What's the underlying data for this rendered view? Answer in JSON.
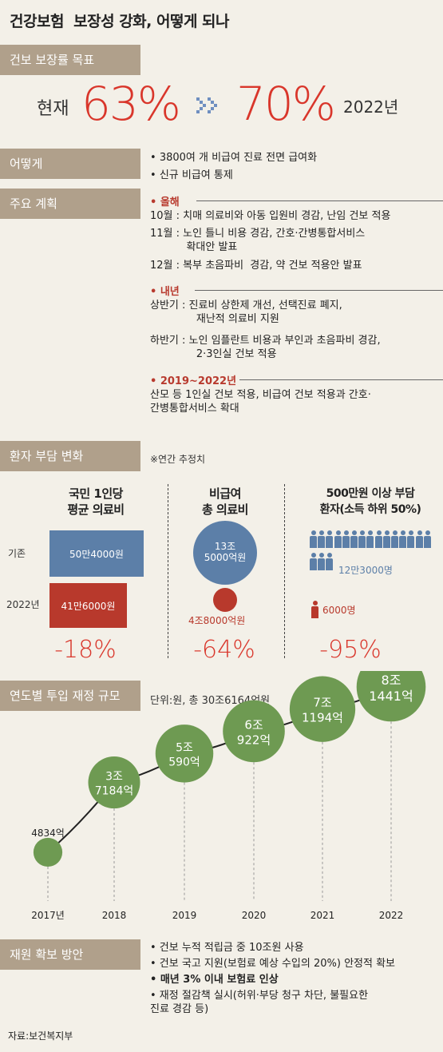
{
  "title": "건강보험  보장성 강화, 어떻게 되나",
  "coverage": {
    "section": "건보 보장률 목표",
    "now_label": "현재",
    "now_value": "63%",
    "target_value": "70%",
    "target_year": "2022년",
    "arrow_icon": "double-chevron-right-icon"
  },
  "how": {
    "section": "어떻게",
    "items": [
      "3800여 개 비급여 진료 전면 급여화",
      "신규 비급여 통제"
    ]
  },
  "plans": {
    "section": "주요 계획",
    "groups": [
      {
        "year": "올해",
        "items": [
          "10월 : 치매 의료비와 아동 입원비 경감, 난임 건보 적용",
          "11월 : 노인 틀니 비용 경감, 간호·간병통합서비스\n           확대안 발표",
          "12월 : 복부 초음파비  경감, 약 건보 적용안 발표"
        ]
      },
      {
        "year": "내년",
        "items": [
          "상반기 : 진료비 상한제 개선, 선택진료 폐지,\n              재난적 의료비 지원",
          "하반기 : 노인 임플란트 비용과 부인과 초음파비 경감,\n              2·3인실 건보 적용"
        ]
      },
      {
        "year": "2019~2022년",
        "items": [
          "산모 등 1인실 건보 적용, 비급여 건보 적용과 간호·\n간병통합서비스 확대"
        ]
      }
    ]
  },
  "burden": {
    "section": "환자 부담 변화",
    "note": "※연간 추정치",
    "col1": {
      "head": "국민 1인당\n평균 의료비",
      "row1_label": "기존",
      "row2_label": "2022년",
      "before": "50만4000원",
      "after": "41만6000원",
      "before_value": 504000,
      "after_value": 416000,
      "change": "-18%"
    },
    "col2": {
      "head": "비급여\n총 의료비",
      "before": "13조\n5000억원",
      "after": "4조8000억원",
      "before_value": 135000,
      "after_value": 48000,
      "change": "-64%"
    },
    "col3": {
      "head": "500만원 이상 부담\n환자(소득 하위 50%)",
      "before": "12만3000명",
      "after": "6000명",
      "before_value": 123000,
      "after_value": 6000,
      "change": "-95%"
    },
    "colors": {
      "before": "#5c7fa8",
      "after": "#b8392c"
    }
  },
  "finance": {
    "section": "연도별 투입 재정 규모",
    "unit": "단위:원, 총 30조6164억원"
  },
  "chart_data": {
    "type": "scatter",
    "title": "연도별 투입 재정 규모",
    "unit": "단위:원, 총 30조6164억원",
    "categories": [
      "2017년",
      "2018",
      "2019",
      "2020",
      "2021",
      "2022"
    ],
    "values": [
      4834,
      37184,
      50590,
      60922,
      71194,
      81441
    ],
    "value_labels": [
      "4834억",
      "3조\n7184억",
      "5조\n590억",
      "6조\n922억",
      "7조\n1194억",
      "8조\n1441억"
    ],
    "color": "#6e9a52"
  },
  "funding": {
    "section": "재원 확보 방안",
    "items": [
      {
        "text": "건보 누적 적립금 중 10조원 사용",
        "bold": false
      },
      {
        "text": "건보 국고 지원(보험료 예상 수입의 20%) 안정적 확보",
        "bold": false
      },
      {
        "text": "매년 3% 이내 보험료 인상",
        "bold": true
      },
      {
        "text": "재정 절감책 실시(허위·부당 청구 차단, 불필요한\n진료 경감 등)",
        "bold": false
      }
    ]
  },
  "source": "자료:보건복지부"
}
